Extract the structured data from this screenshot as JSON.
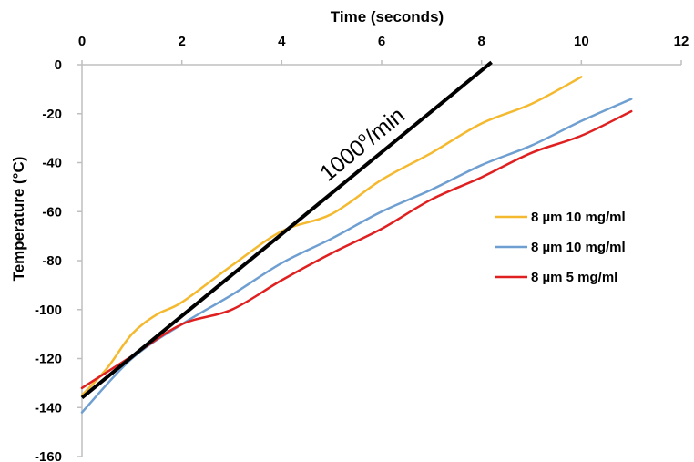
{
  "chart_data": {
    "type": "line",
    "xlabel": "Time (seconds)",
    "ylabel": "Temperature (°C)",
    "xlim": [
      0,
      12
    ],
    "ylim": [
      -160,
      0
    ],
    "x_ticks": [
      0,
      2,
      4,
      6,
      8,
      10,
      12
    ],
    "y_ticks": [
      0,
      -20,
      -40,
      -60,
      -80,
      -100,
      -120,
      -140,
      -160
    ],
    "x_axis_position": "top",
    "grid": false,
    "legend_position": "right",
    "series": [
      {
        "name": "8 µm 10 mg/ml",
        "color": "#f4b92e",
        "x": [
          0,
          0.5,
          1,
          1.5,
          2,
          3,
          4,
          5,
          6,
          7,
          8,
          9,
          10
        ],
        "y": [
          -135,
          -124,
          -110,
          -102,
          -97,
          -82,
          -68,
          -61,
          -47,
          -36,
          -24,
          -16,
          -5
        ]
      },
      {
        "name": "8 µm 10 mg/ml",
        "color": "#6f9fd1",
        "x": [
          0,
          1,
          2,
          3,
          4,
          5,
          6,
          7,
          8,
          9,
          10,
          11
        ],
        "y": [
          -142,
          -120,
          -106,
          -94,
          -81,
          -71,
          -60,
          -51,
          -41,
          -33,
          -23,
          -14
        ]
      },
      {
        "name": "8 µm 5 mg/ml",
        "color": "#e02020",
        "x": [
          0,
          1,
          2,
          3,
          4,
          5,
          6,
          7,
          8,
          9,
          10,
          11
        ],
        "y": [
          -132,
          -119,
          -106,
          -100,
          -88,
          -77,
          -67,
          -55,
          -46,
          -36,
          -29,
          -19
        ]
      }
    ],
    "reference_line": {
      "color": "#000000",
      "x": [
        0,
        8.2
      ],
      "y": [
        -136,
        1
      ]
    },
    "annotation": {
      "text": "1000",
      "superscript": "o",
      "suffix": "/min"
    }
  }
}
